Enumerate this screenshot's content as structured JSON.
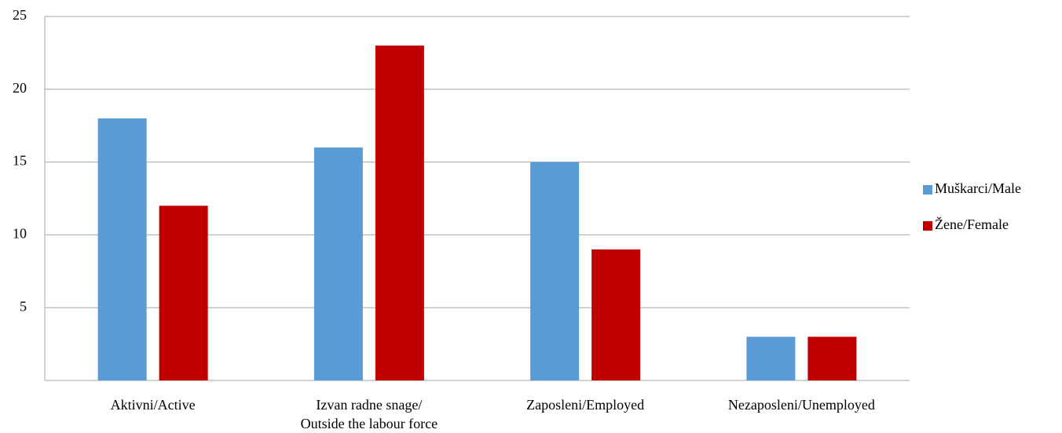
{
  "chart_data": {
    "type": "bar",
    "categories": [
      "Aktivni/Active",
      "Izvan radne snage/\nOutside the labour force",
      "Zaposleni/Employed",
      "Nezaposleni/Unemployed"
    ],
    "series": [
      {
        "name": "Muškarci/Male",
        "color": "#5b9bd5",
        "values": [
          18,
          16,
          15,
          3
        ]
      },
      {
        "name": "Žene/Female",
        "color": "#c00000",
        "values": [
          12,
          23,
          9,
          3
        ]
      }
    ],
    "ylim": [
      0,
      25
    ],
    "yticks": [
      5,
      10,
      15,
      20,
      25
    ],
    "grid": true,
    "legend": "right"
  }
}
